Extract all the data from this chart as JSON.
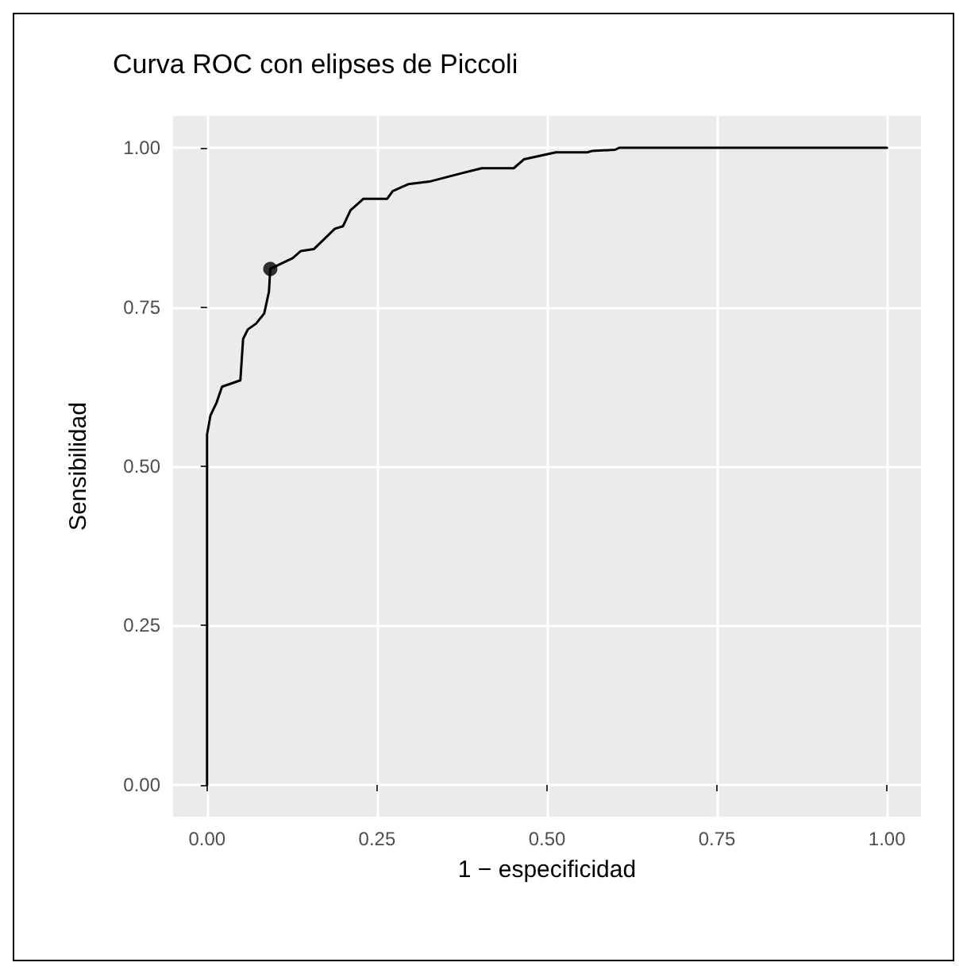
{
  "chart_data": {
    "type": "line",
    "title": "Curva ROC con elipses de Piccoli",
    "xlabel": "1 − especificidad",
    "ylabel": "Sensibilidad",
    "xlim": [
      -0.05,
      1.05
    ],
    "ylim": [
      -0.05,
      1.05
    ],
    "xticks": [
      {
        "value": 0,
        "label": "0.00"
      },
      {
        "value": 0.25,
        "label": "0.25"
      },
      {
        "value": 0.5,
        "label": "0.50"
      },
      {
        "value": 0.75,
        "label": "0.75"
      },
      {
        "value": 1,
        "label": "1.00"
      }
    ],
    "yticks": [
      {
        "value": 0,
        "label": "0.00"
      },
      {
        "value": 0.25,
        "label": "0.25"
      },
      {
        "value": 0.5,
        "label": "0.50"
      },
      {
        "value": 0.75,
        "label": "0.75"
      },
      {
        "value": 1,
        "label": "1.00"
      }
    ],
    "grid": true,
    "marker": "none",
    "line_style": "solid",
    "series": [
      {
        "color": "#000000",
        "x": [
          0,
          0,
          0.005,
          0.014,
          0.022,
          0.049,
          0.053,
          0.06,
          0.072,
          0.084,
          0.091,
          0.093,
          0.126,
          0.138,
          0.157,
          0.188,
          0.2,
          0.211,
          0.23,
          0.265,
          0.273,
          0.296,
          0.327,
          0.374,
          0.404,
          0.451,
          0.466,
          0.513,
          0.559,
          0.566,
          0.6,
          0.606,
          1
        ],
        "values": [
          0,
          0.55,
          0.58,
          0.6,
          0.625,
          0.635,
          0.7,
          0.715,
          0.724,
          0.74,
          0.774,
          0.81,
          0.827,
          0.838,
          0.841,
          0.873,
          0.877,
          0.902,
          0.92,
          0.92,
          0.932,
          0.943,
          0.947,
          0.96,
          0.968,
          0.968,
          0.982,
          0.993,
          0.993,
          0.995,
          0.997,
          1,
          1
        ]
      },
      {
        "type": "scatter",
        "color": "#000000",
        "marker": "circle",
        "x": [
          0.093
        ],
        "values": [
          0.81
        ]
      }
    ]
  }
}
